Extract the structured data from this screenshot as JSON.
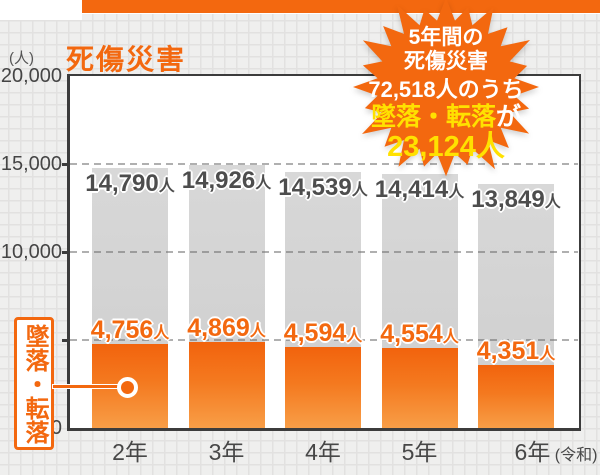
{
  "header": {
    "unit_label": "(人)",
    "title": "死傷災害"
  },
  "badge": {
    "line1": "5年間の",
    "line2": "死傷災害",
    "line3": "72,518人のうち",
    "line4_highlight": "墜落・転落",
    "line4_tail": "が",
    "line5": "23,124人"
  },
  "callout": {
    "label": "墜落・転落"
  },
  "chart_data": {
    "type": "bar",
    "title": "死傷災害",
    "unit": "人",
    "categories": [
      "2年",
      "3年",
      "4年",
      "5年",
      "6年"
    ],
    "category_suffix_last": "(令和)",
    "series": [
      {
        "name": "死傷災害",
        "values": [
          14790,
          14926,
          14539,
          14414,
          13849
        ],
        "labels": [
          "14,790",
          "14,926",
          "14,539",
          "14,414",
          "13,849"
        ],
        "label_suffix": "人",
        "color": "#d3d3d3"
      },
      {
        "name": "墜落・転落",
        "values": [
          4756,
          4869,
          4594,
          4554,
          4351
        ],
        "labels": [
          "4,756",
          "4,869",
          "4,594",
          "4,554",
          "4,351"
        ],
        "label_suffix": "人",
        "color": "#f3680f"
      }
    ],
    "ylim": [
      0,
      20000
    ],
    "y_ticks": [
      {
        "value": 20000,
        "label": "20,000"
      },
      {
        "value": 15000,
        "label": "15,000"
      },
      {
        "value": 10000,
        "label": "10,000"
      },
      {
        "value": 0,
        "label": "0"
      }
    ],
    "gridlines": [
      15000,
      10000,
      5000
    ],
    "grid": "dashed",
    "legend_position": "none",
    "annotation_total_5yr": 72518,
    "annotation_falls_5yr": 23124
  }
}
